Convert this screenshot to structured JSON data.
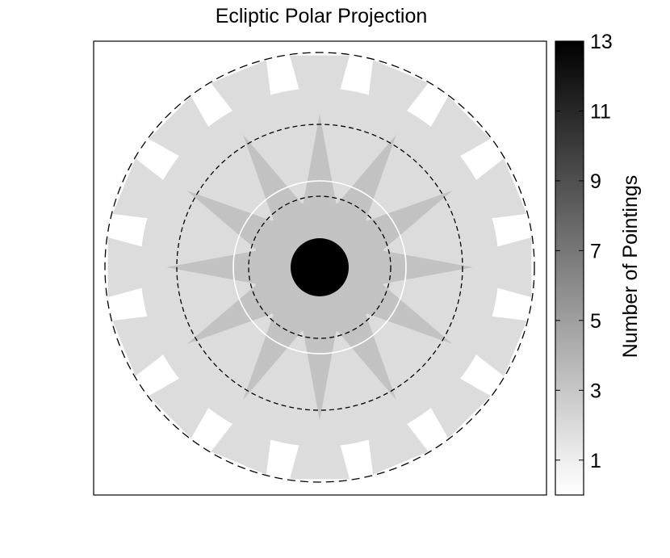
{
  "chart_data": {
    "type": "heatmap",
    "title": "Ecliptic Polar Projection",
    "colorbar": {
      "label": "Number of Pointings",
      "range": [
        0,
        13
      ],
      "ticks": [
        1,
        3,
        5,
        7,
        9,
        11,
        13
      ],
      "colormap": "grayscale, white (low) to black (high)"
    },
    "map": {
      "outer_ring_fields": 16,
      "inner_star_points": 12,
      "outer_field_count": 1,
      "star_overlap_count": 2,
      "center_cap_count": 13,
      "dashed_reference_circles": 3,
      "white_reference_circles": 1
    },
    "xticks": [],
    "yticks": [],
    "grid": false
  },
  "colors": {
    "background": "#ffffff",
    "frame": "#000000",
    "field_level_1": "#dcdcdc",
    "field_level_2": "#c2c2c2",
    "center_cap": "#000000",
    "reference_circle_dashed": "#000000",
    "reference_circle_solid": "#ffffff"
  }
}
